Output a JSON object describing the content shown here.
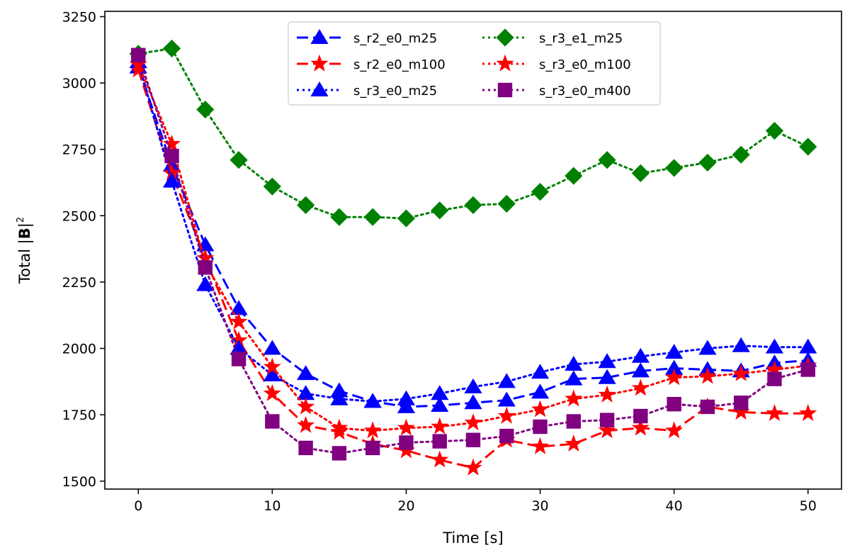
{
  "chart_data": {
    "type": "line",
    "title": "",
    "xlabel": "Time [s]",
    "ylabel_main": "Total |",
    "ylabel_bold": "B",
    "ylabel_tail": "|",
    "ylabel_sup": "2",
    "xlim": [
      -2.5,
      52.5
    ],
    "ylim": [
      1470,
      3270
    ],
    "xticks": [
      0,
      10,
      20,
      30,
      40,
      50
    ],
    "yticks": [
      1500,
      1750,
      2000,
      2250,
      2500,
      2750,
      3000,
      3250
    ],
    "legend_position": "upper-center",
    "series": [
      {
        "name": "s_r2_e0_m25",
        "color": "#0000ff",
        "dash": "dashed",
        "marker": "triangle",
        "x": [
          0,
          2.5,
          5,
          7.5,
          10,
          12.5,
          15,
          17.5,
          20,
          22.5,
          25,
          27.5,
          30,
          32.5,
          35,
          37.5,
          40,
          42.5,
          45,
          47.5,
          50
        ],
        "y": [
          3060,
          2690,
          2390,
          2150,
          2000,
          1905,
          1840,
          1800,
          1780,
          1785,
          1795,
          1805,
          1835,
          1885,
          1890,
          1915,
          1925,
          1920,
          1915,
          1945,
          1955
        ]
      },
      {
        "name": "s_r2_e0_m100",
        "color": "#ff0000",
        "dash": "dashed",
        "marker": "star",
        "x": [
          0,
          2.5,
          5,
          7.5,
          10,
          12.5,
          15,
          17.5,
          20,
          22.5,
          25,
          27.5,
          30,
          32.5,
          35,
          37.5,
          40,
          42.5,
          45,
          47.5,
          50
        ],
        "y": [
          3050,
          2660,
          2340,
          2030,
          1830,
          1710,
          1685,
          1640,
          1615,
          1580,
          1550,
          1655,
          1630,
          1640,
          1690,
          1700,
          1690,
          1780,
          1760,
          1755,
          1755
        ]
      },
      {
        "name": "s_r3_e0_m25",
        "color": "#0000ff",
        "dash": "dotted",
        "marker": "triangle",
        "x": [
          0,
          2.5,
          5,
          7.5,
          10,
          12.5,
          15,
          17.5,
          20,
          22.5,
          25,
          27.5,
          30,
          32.5,
          35,
          37.5,
          40,
          42.5,
          45,
          47.5,
          50
        ],
        "y": [
          3080,
          2630,
          2240,
          2000,
          1900,
          1830,
          1810,
          1800,
          1810,
          1830,
          1855,
          1875,
          1910,
          1940,
          1950,
          1970,
          1985,
          2000,
          2010,
          2005,
          2005
        ]
      },
      {
        "name": "s_r3_e1_m25",
        "color": "#008000",
        "dash": "dotted",
        "marker": "diamond",
        "x": [
          0,
          2.5,
          5,
          7.5,
          10,
          12.5,
          15,
          17.5,
          20,
          22.5,
          25,
          27.5,
          30,
          32.5,
          35,
          37.5,
          40,
          42.5,
          45,
          47.5,
          50
        ],
        "y": [
          3110,
          3130,
          2900,
          2710,
          2610,
          2540,
          2495,
          2495,
          2490,
          2520,
          2540,
          2545,
          2590,
          2650,
          2710,
          2660,
          2680,
          2700,
          2730,
          2820,
          2760
        ]
      },
      {
        "name": "s_r3_e0_m100",
        "color": "#ff0000",
        "dash": "dotted",
        "marker": "star",
        "x": [
          0,
          2.5,
          5,
          7.5,
          10,
          12.5,
          15,
          17.5,
          20,
          22.5,
          25,
          27.5,
          30,
          32.5,
          35,
          37.5,
          40,
          42.5,
          45,
          47.5,
          50
        ],
        "y": [
          3070,
          2770,
          2320,
          2100,
          1930,
          1780,
          1700,
          1690,
          1700,
          1705,
          1720,
          1745,
          1770,
          1810,
          1825,
          1850,
          1890,
          1895,
          1905,
          1920,
          1935
        ]
      },
      {
        "name": "s_r3_e0_m400",
        "color": "#800080",
        "dash": "dotted",
        "marker": "square",
        "x": [
          0,
          2.5,
          5,
          7.5,
          10,
          12.5,
          15,
          17.5,
          20,
          22.5,
          25,
          27.5,
          30,
          32.5,
          35,
          37.5,
          40,
          42.5,
          45,
          47.5,
          50
        ],
        "y": [
          3105,
          2725,
          2305,
          1960,
          1725,
          1625,
          1605,
          1625,
          1645,
          1650,
          1655,
          1670,
          1705,
          1725,
          1730,
          1745,
          1790,
          1780,
          1795,
          1885,
          1920
        ]
      }
    ]
  }
}
